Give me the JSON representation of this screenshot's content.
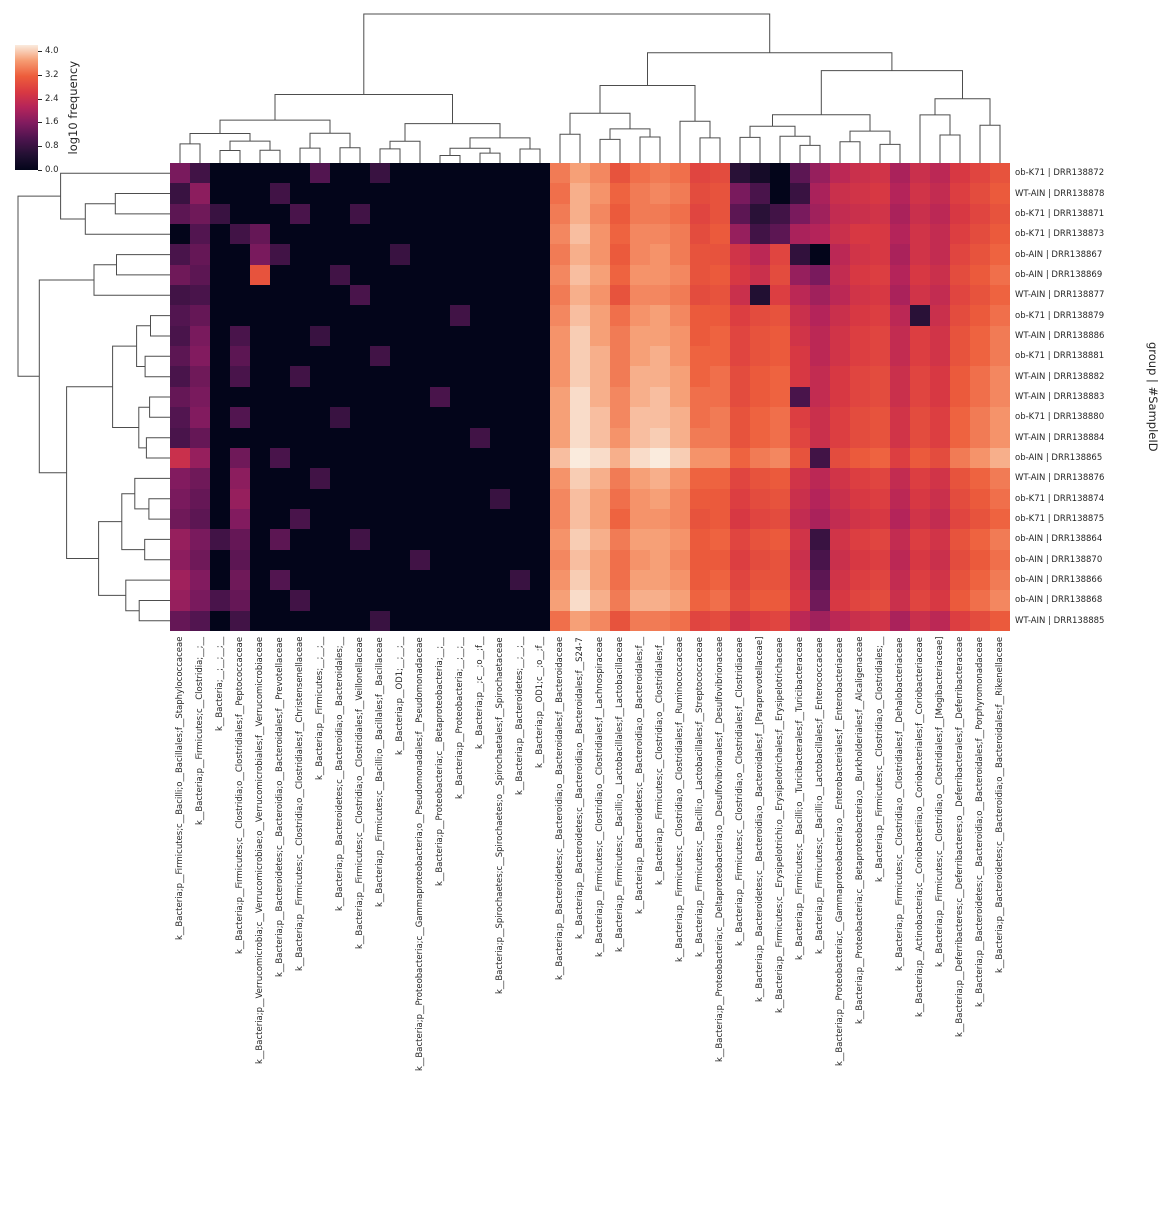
{
  "figure": {
    "colorbar": {
      "label": "log10 frequency",
      "ticks": [
        4.0,
        3.2,
        2.4,
        1.6,
        0.8,
        0.0
      ]
    },
    "row_axis_label": "group | #SampleID"
  },
  "chart_data": {
    "type": "heatmap",
    "title": "",
    "value_label": "log10 frequency",
    "value_range": [
      0,
      4.2
    ],
    "colormap": "rocket",
    "colormap_anchors": {
      "low": "#03051A",
      "mid": "#B42458",
      "high": "#FAEBDD"
    },
    "legend_position": "top-left",
    "row_dendrogram": true,
    "col_dendrogram": true,
    "rows": [
      "ob-K71 | DRR138872",
      "WT-AIN | DRR138878",
      "ob-K71 | DRR138871",
      "ob-K71 | DRR138873",
      "ob-AIN | DRR138867",
      "ob-AIN | DRR138869",
      "WT-AIN | DRR138877",
      "ob-K71 | DRR138879",
      "WT-AIN | DRR138886",
      "ob-K71 | DRR138881",
      "WT-AIN | DRR138882",
      "WT-AIN | DRR138883",
      "ob-K71 | DRR138880",
      "WT-AIN | DRR138884",
      "ob-AIN | DRR138865",
      "WT-AIN | DRR138876",
      "ob-K71 | DRR138874",
      "ob-K71 | DRR138875",
      "ob-AIN | DRR138864",
      "ob-AIN | DRR138870",
      "ob-AIN | DRR138866",
      "ob-AIN | DRR138868",
      "WT-AIN | DRR138885"
    ],
    "columns": [
      "k__Bacteria;p__Firmicutes;c__Bacilli;o__Bacillales;f__Staphylococcaceae",
      "k__Bacteria;p__Firmicutes;c__Clostridia;__;__",
      "k__Bacteria;__;__;__;__",
      "k__Bacteria;p__Firmicutes;c__Clostridia;o__Clostridiales;f__Peptococcaceae",
      "k__Bacteria;p__Verrucomicrobia;c__Verrucomicrobiae;o__Verrucomicrobiales;f__Verrucomicrobiaceae",
      "k__Bacteria;p__Bacteroidetes;c__Bacteroidia;o__Bacteroidales;f__Prevotellaceae",
      "k__Bacteria;p__Firmicutes;c__Clostridia;o__Clostridiales;f__Christensenellaceae",
      "k__Bacteria;p__Firmicutes;__;__;__",
      "k__Bacteria;p__Bacteroidetes;c__Bacteroidia;o__Bacteroidales;__",
      "k__Bacteria;p__Firmicutes;c__Clostridia;o__Clostridiales;f__Veillonellaceae",
      "k__Bacteria;p__Firmicutes;c__Bacilli;o__Bacillales;f__Bacillaceae",
      "k__Bacteria;p__OD1;__;__;__",
      "k__Bacteria;p__Proteobacteria;c__Gammaproteobacteria;o__Pseudomonadales;f__Pseudomonadaceae",
      "k__Bacteria;p__Proteobacteria;c__Betaproteobacteria;__;__",
      "k__Bacteria;p__Proteobacteria;__;__;__",
      "k__Bacteria;p__;c__;o__;f__",
      "k__Bacteria;p__Spirochaetes;c__Spirochaetes;o__Spirochaetales;f__Spirochaetaceae",
      "k__Bacteria;p__Bacteroidetes;__;__;__",
      "k__Bacteria;p__OD1;c__;o__;f__",
      "k__Bacteria;p__Bacteroidetes;c__Bacteroidia;o__Bacteroidales;f__Bacteroidaceae",
      "k__Bacteria;p__Bacteroidetes;c__Bacteroidia;o__Bacteroidales;f__S24-7",
      "k__Bacteria;p__Firmicutes;c__Clostridia;o__Clostridiales;f__Lachnospiraceae",
      "k__Bacteria;p__Firmicutes;c__Bacilli;o__Lactobacillales;f__Lactobacillaceae",
      "k__Bacteria;p__Bacteroidetes;c__Bacteroidia;o__Bacteroidales;f__",
      "k__Bacteria;p__Firmicutes;c__Clostridia;o__Clostridiales;f__",
      "k__Bacteria;p__Firmicutes;c__Clostridia;o__Clostridiales;f__Ruminococcaceae",
      "k__Bacteria;p__Firmicutes;c__Bacilli;o__Lactobacillales;f__Streptococcaceae",
      "k__Bacteria;p__Proteobacteria;c__Deltaproteobacteria;o__Desulfovibrionales;f__Desulfovibrionaceae",
      "k__Bacteria;p__Firmicutes;c__Clostridia;o__Clostridiales;f__Clostridiaceae",
      "k__Bacteria;p__Bacteroidetes;c__Bacteroidia;o__Bacteroidales;f__[Paraprevotellaceae]",
      "k__Bacteria;p__Firmicutes;c__Erysipelotrichi;o__Erysipelotrichales;f__Erysipelotrichaceae",
      "k__Bacteria;p__Firmicutes;c__Bacilli;o__Turicibacterales;f__Turicibacteraceae",
      "k__Bacteria;p__Firmicutes;c__Bacilli;o__Lactobacillales;f__Enterococcaceae",
      "k__Bacteria;p__Proteobacteria;c__Gammaproteobacteria;o__Enterobacteriales;f__Enterobacteriaceae",
      "k__Bacteria;p__Proteobacteria;c__Betaproteobacteria;o__Burkholderiales;f__Alcaligenaceae",
      "k__Bacteria;p__Firmicutes;c__Clostridia;o__Clostridiales;__",
      "k__Bacteria;p__Firmicutes;c__Clostridia;o__Clostridiales;f__Dehalobacteriaceae",
      "k__Bacteria;p__Actinobacteria;c__Coriobacteriia;o__Coriobacteriales;f__Coriobacteriaceae",
      "k__Bacteria;p__Firmicutes;c__Clostridia;o__Clostridiales;f__[Mogibacteriaceae]",
      "k__Bacteria;p__Deferribacteres;c__Deferribacteres;o__Deferribacterales;f__Deferribacteraceae",
      "k__Bacteria;p__Bacteroidetes;c__Bacteroidia;o__Bacteroidales;f__Porphyromonadaceae",
      "k__Bacteria;p__Bacteroidetes;c__Bacteroidia;o__Bacteroidales;f__Rikenellaceae"
    ],
    "values": [
      [
        1.5,
        0.9,
        0,
        0,
        0,
        0,
        0,
        1.1,
        0,
        0,
        0.8,
        0,
        0,
        0,
        0,
        0,
        0,
        0,
        0,
        3.4,
        3.7,
        3.5,
        3.0,
        3.3,
        3.4,
        3.3,
        2.8,
        2.9,
        0.6,
        0.3,
        0,
        1.2,
        1.8,
        2.2,
        2.4,
        2.5,
        2.0,
        2.4,
        2.2,
        2.6,
        2.8,
        3.0
      ],
      [
        0.8,
        1.7,
        0,
        0,
        0,
        0.9,
        0,
        0,
        0,
        0,
        0,
        0,
        0,
        0,
        0,
        0,
        0,
        0,
        0,
        3.3,
        3.8,
        3.6,
        3.2,
        3.4,
        3.5,
        3.4,
        2.9,
        3.0,
        1.5,
        1.0,
        0,
        0.8,
        2.0,
        2.4,
        2.5,
        2.6,
        2.1,
        2.5,
        2.3,
        2.7,
        2.9,
        3.1
      ],
      [
        1.2,
        1.4,
        0.8,
        0,
        0,
        0,
        1.0,
        0,
        0,
        0.9,
        0,
        0,
        0,
        0,
        0,
        0,
        0,
        0,
        0,
        3.4,
        3.8,
        3.5,
        3.1,
        3.4,
        3.4,
        3.3,
        2.8,
        3.0,
        1.2,
        0.6,
        0.9,
        1.5,
        1.9,
        2.3,
        2.4,
        2.5,
        2.0,
        2.4,
        2.2,
        2.6,
        2.8,
        3.0
      ],
      [
        0,
        1.1,
        0,
        0.9,
        1.3,
        0,
        0,
        0,
        0,
        0,
        0,
        0,
        0,
        0,
        0,
        0,
        0,
        0,
        0,
        3.5,
        3.9,
        3.6,
        3.2,
        3.5,
        3.5,
        3.4,
        2.9,
        3.1,
        1.8,
        0.9,
        1.2,
        2.0,
        2.1,
        2.4,
        2.6,
        2.6,
        2.1,
        2.5,
        2.3,
        2.7,
        2.9,
        3.1
      ],
      [
        1.0,
        1.3,
        0,
        0,
        1.5,
        0.9,
        0,
        0,
        0,
        0,
        0,
        0.8,
        0,
        0,
        0,
        0,
        0,
        0,
        0,
        3.4,
        3.8,
        3.6,
        3.1,
        3.5,
        3.6,
        3.4,
        3.0,
        3.0,
        2.5,
        2.2,
        2.8,
        0.7,
        0,
        2.2,
        2.5,
        2.6,
        2.0,
        2.5,
        2.3,
        2.8,
        3.0,
        3.2
      ],
      [
        1.4,
        1.2,
        0,
        0,
        3.0,
        0,
        0,
        0,
        0.9,
        0,
        0,
        0,
        0,
        0,
        0,
        0,
        0,
        0,
        0,
        3.5,
        3.9,
        3.7,
        3.2,
        3.6,
        3.6,
        3.5,
        3.0,
        3.1,
        2.6,
        2.4,
        2.9,
        1.8,
        1.5,
        2.3,
        2.6,
        2.7,
        2.1,
        2.6,
        2.4,
        2.9,
        3.1,
        3.3
      ],
      [
        0.9,
        1.0,
        0,
        0,
        0,
        0,
        0,
        0,
        0,
        1.0,
        0,
        0,
        0,
        0,
        0,
        0,
        0,
        0,
        0,
        3.4,
        3.8,
        3.6,
        3.0,
        3.5,
        3.5,
        3.4,
        2.9,
        3.0,
        2.4,
        0.5,
        2.7,
        2.2,
        1.9,
        2.2,
        2.5,
        2.6,
        2.0,
        2.5,
        2.3,
        2.8,
        3.0,
        3.2
      ],
      [
        1.1,
        1.3,
        0,
        0,
        0,
        0,
        0,
        0,
        0,
        0,
        0,
        0,
        0,
        0,
        0.9,
        0,
        0,
        0,
        0,
        3.5,
        3.9,
        3.7,
        3.3,
        3.6,
        3.7,
        3.5,
        3.1,
        3.1,
        2.7,
        2.9,
        3.0,
        2.4,
        2.1,
        2.4,
        2.6,
        2.7,
        2.2,
        0.6,
        2.4,
        2.9,
        3.1,
        3.3
      ],
      [
        1.0,
        1.5,
        0,
        1.0,
        0,
        0,
        0,
        0.8,
        0,
        0,
        0,
        0,
        0,
        0,
        0,
        0,
        0,
        0,
        0,
        3.6,
        4.0,
        3.7,
        3.4,
        3.7,
        3.7,
        3.6,
        3.1,
        3.2,
        2.8,
        3.0,
        3.1,
        2.5,
        2.2,
        2.5,
        2.7,
        2.8,
        2.3,
        2.7,
        2.5,
        3.0,
        3.2,
        3.4
      ],
      [
        1.2,
        1.6,
        0,
        1.2,
        0,
        0,
        0,
        0,
        0,
        0,
        0.9,
        0,
        0,
        0,
        0,
        0,
        0,
        0,
        0,
        3.6,
        4.0,
        3.8,
        3.4,
        3.7,
        3.8,
        3.6,
        3.2,
        3.2,
        2.8,
        3.0,
        3.1,
        2.6,
        2.2,
        2.5,
        2.7,
        2.8,
        2.3,
        2.7,
        2.5,
        3.0,
        3.2,
        3.4
      ],
      [
        1.0,
        1.4,
        0,
        1.0,
        0,
        0,
        0.9,
        0,
        0,
        0,
        0,
        0,
        0,
        0,
        0,
        0,
        0,
        0,
        0,
        3.6,
        4.0,
        3.8,
        3.4,
        3.8,
        3.8,
        3.7,
        3.2,
        3.3,
        2.9,
        3.1,
        3.2,
        2.6,
        2.3,
        2.6,
        2.8,
        2.9,
        2.4,
        2.8,
        2.6,
        3.1,
        3.3,
        3.5
      ],
      [
        1.3,
        1.5,
        0,
        0,
        0,
        0,
        0,
        0,
        0,
        0,
        0,
        0,
        0,
        1.0,
        0,
        0,
        0,
        0,
        0,
        3.7,
        4.1,
        3.8,
        3.5,
        3.8,
        3.9,
        3.7,
        3.3,
        3.3,
        2.9,
        3.1,
        3.2,
        1.0,
        2.3,
        2.6,
        2.8,
        2.9,
        2.4,
        2.8,
        2.6,
        3.1,
        3.3,
        3.5
      ],
      [
        1.1,
        1.6,
        0,
        1.1,
        0,
        0,
        0,
        0,
        0.8,
        0,
        0,
        0,
        0,
        0,
        0,
        0,
        0,
        0,
        0,
        3.7,
        4.1,
        3.9,
        3.5,
        3.9,
        3.9,
        3.8,
        3.3,
        3.4,
        3.0,
        3.2,
        3.3,
        2.7,
        2.4,
        2.7,
        2.9,
        3.0,
        2.5,
        2.9,
        2.7,
        3.2,
        3.4,
        3.6
      ],
      [
        1.0,
        1.3,
        0,
        0,
        0,
        0,
        0,
        0,
        0,
        0,
        0,
        0,
        0,
        0,
        0,
        0.9,
        0,
        0,
        0,
        3.7,
        4.1,
        3.9,
        3.6,
        3.9,
        4.0,
        3.8,
        3.4,
        3.4,
        3.0,
        3.2,
        3.3,
        2.8,
        2.4,
        2.7,
        2.9,
        3.0,
        2.5,
        2.9,
        2.7,
        3.2,
        3.4,
        3.6
      ],
      [
        2.4,
        1.8,
        0,
        1.4,
        0,
        1.0,
        0,
        0,
        0,
        0,
        0,
        0,
        0,
        0,
        0,
        0,
        0,
        0,
        0,
        3.9,
        4.2,
        4.1,
        3.8,
        4.1,
        4.2,
        4.0,
        3.6,
        3.6,
        3.2,
        3.4,
        3.5,
        3.0,
        0.9,
        2.9,
        3.1,
        3.2,
        2.7,
        3.1,
        2.9,
        3.4,
        3.6,
        3.8
      ],
      [
        1.6,
        1.4,
        0,
        1.7,
        0,
        0,
        0,
        0.9,
        0,
        0,
        0,
        0,
        0,
        0,
        0,
        0,
        0,
        0,
        0,
        3.6,
        4.0,
        3.8,
        3.4,
        3.7,
        3.8,
        3.6,
        3.2,
        3.2,
        2.8,
        3.0,
        3.1,
        2.5,
        2.2,
        2.5,
        2.7,
        2.8,
        2.3,
        2.7,
        2.5,
        3.0,
        3.2,
        3.4
      ],
      [
        1.5,
        1.3,
        0,
        1.8,
        0,
        0,
        0,
        0,
        0,
        0,
        0,
        0,
        0,
        0,
        0,
        0,
        0.8,
        0,
        0,
        3.5,
        3.9,
        3.7,
        3.3,
        3.6,
        3.7,
        3.5,
        3.1,
        3.1,
        2.7,
        2.9,
        3.0,
        2.4,
        2.1,
        2.4,
        2.6,
        2.7,
        2.2,
        2.6,
        2.4,
        2.9,
        3.1,
        3.3
      ],
      [
        1.4,
        1.2,
        0,
        1.6,
        0,
        0,
        1.0,
        0,
        0,
        0,
        0,
        0,
        0,
        0,
        0,
        0,
        0,
        0,
        0,
        3.5,
        3.9,
        3.7,
        3.2,
        3.6,
        3.6,
        3.5,
        3.0,
        3.1,
        2.6,
        2.8,
        2.9,
        2.3,
        2.0,
        2.3,
        2.5,
        2.6,
        2.1,
        2.5,
        2.3,
        2.8,
        3.0,
        3.2
      ],
      [
        1.8,
        1.5,
        0.9,
        1.3,
        0,
        1.2,
        0,
        0,
        0,
        0.9,
        0,
        0,
        0,
        0,
        0,
        0,
        0,
        0,
        0,
        3.6,
        4.0,
        3.8,
        3.4,
        3.7,
        3.7,
        3.6,
        3.1,
        3.2,
        2.8,
        3.0,
        3.1,
        2.5,
        0.8,
        2.5,
        2.7,
        2.8,
        2.3,
        2.7,
        2.5,
        3.0,
        3.2,
        3.4
      ],
      [
        1.7,
        1.4,
        0,
        1.2,
        0,
        0,
        0,
        0,
        0,
        0,
        0,
        0,
        0.9,
        0,
        0,
        0,
        0,
        0,
        0,
        3.5,
        3.9,
        3.7,
        3.3,
        3.6,
        3.7,
        3.5,
        3.1,
        3.1,
        2.7,
        2.9,
        3.0,
        2.4,
        1.0,
        2.4,
        2.6,
        2.7,
        2.2,
        2.6,
        2.4,
        2.9,
        3.1,
        3.3
      ],
      [
        1.9,
        1.6,
        0,
        1.4,
        0,
        1.1,
        0,
        0,
        0,
        0,
        0,
        0,
        0,
        0,
        0,
        0,
        0,
        0.8,
        0,
        3.6,
        4.0,
        3.7,
        3.3,
        3.7,
        3.7,
        3.6,
        3.1,
        3.2,
        2.8,
        3.0,
        3.0,
        2.5,
        1.2,
        2.5,
        2.7,
        2.8,
        2.3,
        2.7,
        2.5,
        3.0,
        3.2,
        3.4
      ],
      [
        1.8,
        1.5,
        1.0,
        1.3,
        0,
        0,
        0.9,
        0,
        0,
        0,
        0,
        0,
        0,
        0,
        0,
        0,
        0,
        0,
        0,
        3.7,
        4.1,
        3.8,
        3.4,
        3.8,
        3.8,
        3.7,
        3.2,
        3.3,
        2.9,
        3.1,
        3.1,
        2.6,
        1.4,
        2.6,
        2.8,
        2.9,
        2.4,
        2.8,
        2.6,
        3.1,
        3.3,
        3.5
      ],
      [
        1.3,
        1.1,
        0,
        0.9,
        0,
        0,
        0,
        0,
        0,
        0,
        0.8,
        0,
        0,
        0,
        0,
        0,
        0,
        0,
        0,
        3.3,
        3.7,
        3.5,
        3.0,
        3.4,
        3.4,
        3.3,
        2.8,
        2.9,
        2.5,
        2.7,
        2.8,
        2.2,
        1.9,
        2.2,
        2.4,
        2.5,
        2.0,
        2.4,
        2.2,
        2.7,
        2.9,
        3.1
      ]
    ]
  }
}
